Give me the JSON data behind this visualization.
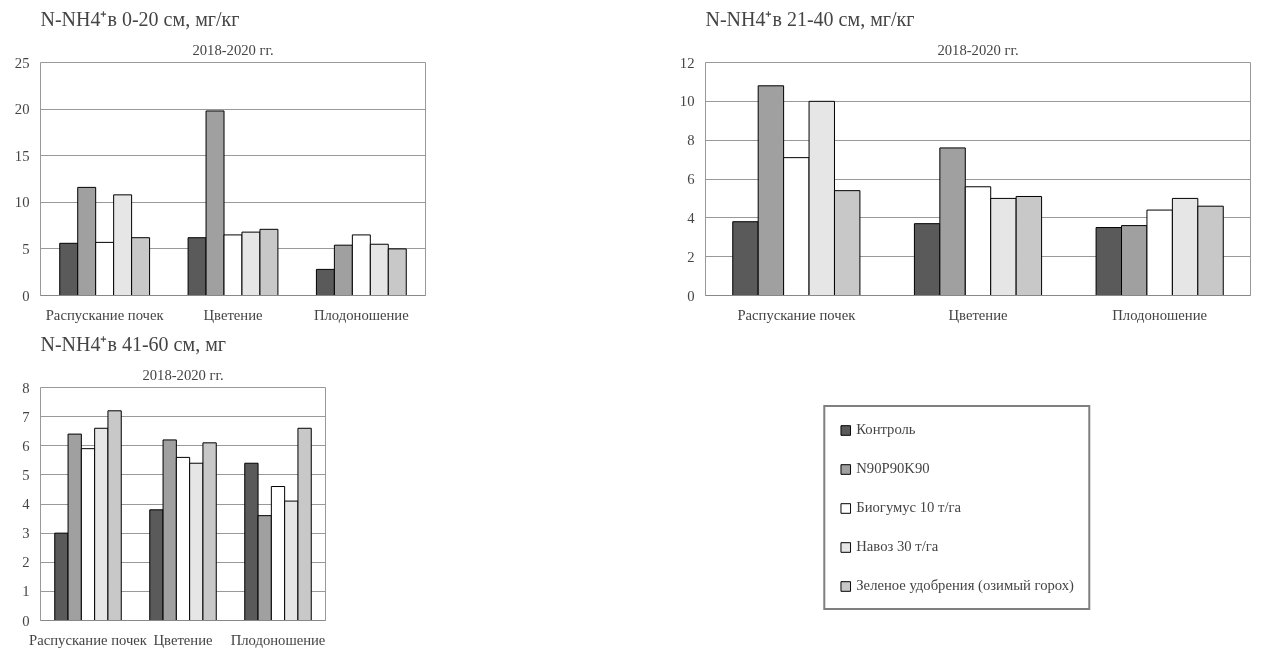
{
  "chart_data": [
    {
      "type": "bar",
      "title": "N-NH4⁺в 0-20 см, мг/кг",
      "subtitle": "2018-2020 гг.",
      "categories": [
        "Распускание почек",
        "Цветение",
        "Плодоношение"
      ],
      "ylim": [
        0,
        25
      ],
      "yticks": [
        0,
        5,
        10,
        15,
        20,
        25
      ],
      "grid": "y",
      "series": [
        {
          "color": "#5a5a5a",
          "values": [
            5.6,
            6.2,
            2.8
          ]
        },
        {
          "color": "#a0a0a0",
          "values": [
            11.6,
            19.8,
            5.4
          ]
        },
        {
          "color": "#ffffff",
          "values": [
            5.7,
            6.5,
            6.5
          ]
        },
        {
          "color": "#e6e6e6",
          "values": [
            10.8,
            6.8,
            5.5
          ]
        },
        {
          "color": "#c8c8c8",
          "values": [
            6.2,
            7.1,
            5.0
          ]
        }
      ]
    },
    {
      "type": "bar",
      "title": "N-NH4⁺в 21-40 см, мг/кг",
      "subtitle": "2018-2020 гг.",
      "categories": [
        "Распускание почек",
        "Цветение",
        "Плодоношение"
      ],
      "ylim": [
        0,
        12
      ],
      "yticks": [
        0,
        2,
        4,
        6,
        8,
        10,
        12
      ],
      "grid": "y",
      "series": [
        {
          "color": "#5a5a5a",
          "values": [
            3.8,
            3.7,
            3.5
          ]
        },
        {
          "color": "#a0a0a0",
          "values": [
            10.8,
            7.6,
            3.6
          ]
        },
        {
          "color": "#ffffff",
          "values": [
            7.1,
            5.6,
            4.4
          ]
        },
        {
          "color": "#e6e6e6",
          "values": [
            10.0,
            5.0,
            5.0
          ]
        },
        {
          "color": "#c8c8c8",
          "values": [
            5.4,
            5.1,
            4.6
          ]
        }
      ]
    },
    {
      "type": "bar",
      "title": "N-NH4⁺в 41-60 см, мг",
      "subtitle": "2018-2020 гг.",
      "categories": [
        "Распускание почек",
        "Цветение",
        "Плодоношение"
      ],
      "ylim": [
        0,
        8
      ],
      "yticks": [
        0,
        1,
        2,
        3,
        4,
        5,
        6,
        7,
        8
      ],
      "grid": "y",
      "legend": "right",
      "series": [
        {
          "name": "Контроль",
          "color": "#5a5a5a",
          "values": [
            3.0,
            3.8,
            5.4
          ]
        },
        {
          "name": "N90P90K90",
          "color": "#a0a0a0",
          "values": [
            6.4,
            6.2,
            3.6
          ]
        },
        {
          "name": "Биогумус 10 т/га",
          "color": "#ffffff",
          "values": [
            5.9,
            5.6,
            4.6
          ]
        },
        {
          "name": "Навоз 30 т/га",
          "color": "#e6e6e6",
          "values": [
            6.6,
            5.4,
            4.1
          ]
        },
        {
          "name": "Зеленое удобрения (озимый горох)",
          "color": "#c8c8c8",
          "values": [
            7.2,
            6.1,
            6.6
          ]
        }
      ]
    }
  ]
}
